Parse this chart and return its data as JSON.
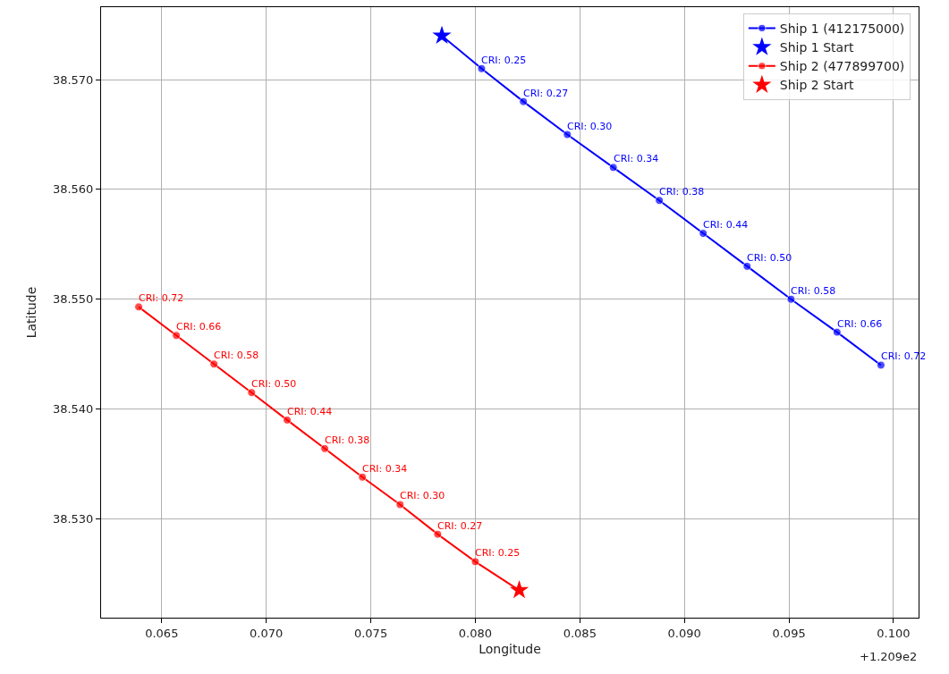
{
  "chart_data": {
    "type": "line",
    "xlabel": "Longitude",
    "ylabel": "Latitude",
    "series": [
      {
        "name": "Ship 1 (412175000)",
        "color": "#0000ff",
        "marker": "circle",
        "x": [
          0.0784,
          0.0803,
          0.0823,
          0.0844,
          0.0866,
          0.0888,
          0.0909,
          0.093,
          0.0951,
          0.0973,
          0.0994
        ],
        "values": [
          38.574,
          38.571,
          38.568,
          38.565,
          38.562,
          38.559,
          38.556,
          38.553,
          38.55,
          38.547,
          38.544
        ]
      },
      {
        "name": "Ship 1 Start",
        "type": "scatter",
        "color": "#0000ff",
        "marker": "star",
        "x": [
          0.0784
        ],
        "values": [
          38.574
        ]
      },
      {
        "name": "Ship 2 (477899700)",
        "color": "#ff0000",
        "marker": "circle",
        "x": [
          0.0821,
          0.08,
          0.0782,
          0.0764,
          0.0746,
          0.0728,
          0.071,
          0.0693,
          0.0675,
          0.0657,
          0.0639
        ],
        "values": [
          38.5235,
          38.5261,
          38.5286,
          38.5313,
          38.5338,
          38.5364,
          38.539,
          38.5415,
          38.5441,
          38.5467,
          38.5493
        ]
      },
      {
        "name": "Ship 2 Start",
        "type": "scatter",
        "color": "#ff0000",
        "marker": "star",
        "x": [
          0.0821
        ],
        "values": [
          38.5235
        ]
      }
    ],
    "xlim": [
      0.0621,
      0.1012
    ],
    "xticks": [
      {
        "value": 0.065,
        "label": "0.065"
      },
      {
        "value": 0.07,
        "label": "0.070"
      },
      {
        "value": 0.075,
        "label": "0.075"
      },
      {
        "value": 0.08,
        "label": "0.080"
      },
      {
        "value": 0.085,
        "label": "0.085"
      },
      {
        "value": 0.09,
        "label": "0.090"
      },
      {
        "value": 0.095,
        "label": "0.095"
      },
      {
        "value": 0.1,
        "label": "0.100"
      }
    ],
    "ylim": [
      38.521,
      38.5766
    ],
    "yticks": [
      {
        "value": 38.53,
        "label": "38.530"
      },
      {
        "value": 38.54,
        "label": "38.540"
      },
      {
        "value": 38.55,
        "label": "38.550"
      },
      {
        "value": 38.56,
        "label": "38.560"
      },
      {
        "value": 38.57,
        "label": "38.570"
      }
    ],
    "annotations": [
      "+1.209e2",
      {
        "text": "CRI: 0.25",
        "x": 0.0803,
        "y": 38.571
      },
      {
        "text": "CRI: 0.27",
        "x": 0.0823,
        "y": 38.568
      },
      {
        "text": "CRI: 0.30",
        "x": 0.0844,
        "y": 38.565
      },
      {
        "text": "CRI: 0.34",
        "x": 0.0866,
        "y": 38.562
      },
      {
        "text": "CRI: 0.38",
        "x": 0.0888,
        "y": 38.559
      },
      {
        "text": "CRI: 0.44",
        "x": 0.0909,
        "y": 38.556
      },
      {
        "text": "CRI: 0.50",
        "x": 0.093,
        "y": 38.553
      },
      {
        "text": "CRI: 0.58",
        "x": 0.0951,
        "y": 38.55
      },
      {
        "text": "CRI: 0.66",
        "x": 0.0973,
        "y": 38.547
      },
      {
        "text": "CRI: 0.72",
        "x": 0.0994,
        "y": 38.544
      },
      {
        "text": "CRI: 0.25",
        "x": 0.08,
        "y": 38.5261
      },
      {
        "text": "CRI: 0.27",
        "x": 0.0782,
        "y": 38.5286
      },
      {
        "text": "CRI: 0.30",
        "x": 0.0764,
        "y": 38.5313
      },
      {
        "text": "CRI: 0.34",
        "x": 0.0746,
        "y": 38.5338
      },
      {
        "text": "CRI: 0.38",
        "x": 0.0728,
        "y": 38.5364
      },
      {
        "text": "CRI: 0.44",
        "x": 0.071,
        "y": 38.539
      },
      {
        "text": "CRI: 0.50",
        "x": 0.0693,
        "y": 38.5415
      },
      {
        "text": "CRI: 0.58",
        "x": 0.0675,
        "y": 38.5441
      },
      {
        "text": "CRI: 0.66",
        "x": 0.0657,
        "y": 38.5467
      },
      {
        "text": "CRI: 0.72",
        "x": 0.0639,
        "y": 38.5493
      }
    ],
    "grid": true,
    "legend": "top right"
  }
}
